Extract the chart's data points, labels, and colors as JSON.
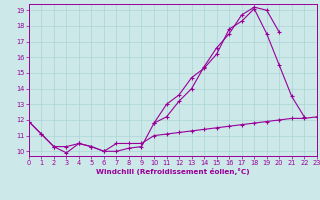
{
  "xlabel": "Windchill (Refroidissement éolien,°C)",
  "bg_color": "#cce8e8",
  "line_color": "#990099",
  "grid_color": "#aad4d4",
  "line1_x": [
    0,
    1,
    2,
    3,
    4,
    5,
    6,
    7,
    8,
    9,
    10,
    11,
    12,
    13,
    14,
    15,
    16,
    17,
    18,
    19,
    20,
    21,
    22
  ],
  "line1_y": [
    11.9,
    11.1,
    10.3,
    9.9,
    10.5,
    10.3,
    10.0,
    10.0,
    10.2,
    10.3,
    11.8,
    13.0,
    13.6,
    14.7,
    15.3,
    16.2,
    17.8,
    18.3,
    19.1,
    17.5,
    15.5,
    13.5,
    12.2
  ],
  "line2_x": [
    0,
    1,
    2,
    3,
    4,
    5,
    6,
    7,
    8,
    9,
    10,
    11,
    12,
    13,
    14,
    15,
    16,
    17,
    18,
    19,
    20,
    21,
    22,
    23
  ],
  "line2_y": [
    11.9,
    11.1,
    10.3,
    10.3,
    10.5,
    10.3,
    10.0,
    10.5,
    10.5,
    10.5,
    11.0,
    11.1,
    11.2,
    11.3,
    11.4,
    11.5,
    11.6,
    11.7,
    11.8,
    11.9,
    12.0,
    12.1,
    12.1,
    12.2
  ],
  "line3_x": [
    10,
    11,
    12,
    13,
    14,
    15,
    16,
    17,
    18,
    19,
    20
  ],
  "line3_y": [
    11.8,
    12.2,
    13.2,
    14.0,
    15.4,
    16.6,
    17.5,
    18.7,
    19.2,
    19.0,
    17.6
  ],
  "xlim": [
    0,
    23
  ],
  "ylim": [
    9.7,
    19.4
  ],
  "xticks": [
    0,
    1,
    2,
    3,
    4,
    5,
    6,
    7,
    8,
    9,
    10,
    11,
    12,
    13,
    14,
    15,
    16,
    17,
    18,
    19,
    20,
    21,
    22,
    23
  ],
  "yticks": [
    10,
    11,
    12,
    13,
    14,
    15,
    16,
    17,
    18,
    19
  ],
  "marker": "+",
  "markersize": 3.5,
  "linewidth": 0.8,
  "tick_fontsize": 4.8,
  "xlabel_fontsize": 5.2
}
